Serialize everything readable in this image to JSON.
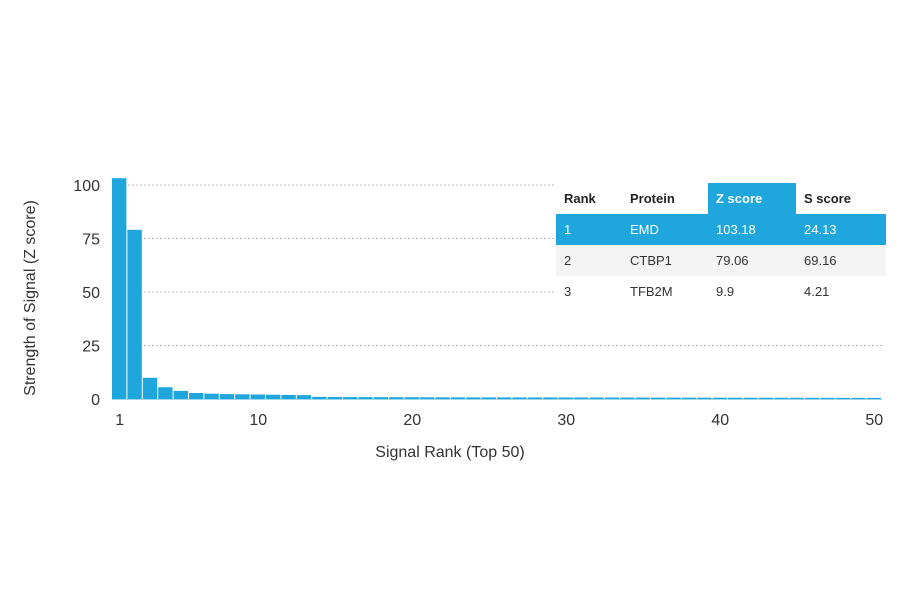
{
  "colors": {
    "bar": "#1fa6dd",
    "highlight": "#1fa6dd",
    "grid": "#bbbbbb",
    "text": "#333333"
  },
  "chart_data": {
    "type": "bar",
    "xlabel": "Signal Rank (Top 50)",
    "ylabel": "Strength of Signal (Z score)",
    "x_ticks": [
      1,
      10,
      20,
      30,
      40,
      50
    ],
    "y_ticks": [
      0,
      25,
      50,
      75,
      100
    ],
    "ylim": [
      0,
      103.18
    ],
    "grid": "horizontal dashed",
    "categories": [
      1,
      2,
      3,
      4,
      5,
      6,
      7,
      8,
      9,
      10,
      11,
      12,
      13,
      14,
      15,
      16,
      17,
      18,
      19,
      20,
      21,
      22,
      23,
      24,
      25,
      26,
      27,
      28,
      29,
      30,
      31,
      32,
      33,
      34,
      35,
      36,
      37,
      38,
      39,
      40,
      41,
      42,
      43,
      44,
      45,
      46,
      47,
      48,
      49,
      50
    ],
    "values": [
      103.18,
      79.06,
      9.9,
      5.5,
      3.8,
      2.8,
      2.5,
      2.3,
      2.2,
      2.1,
      2.0,
      1.9,
      1.8,
      1.0,
      0.95,
      0.9,
      0.88,
      0.86,
      0.84,
      0.82,
      0.8,
      0.79,
      0.78,
      0.77,
      0.76,
      0.75,
      0.74,
      0.73,
      0.72,
      0.71,
      0.7,
      0.69,
      0.68,
      0.67,
      0.66,
      0.65,
      0.64,
      0.63,
      0.62,
      0.61,
      0.6,
      0.59,
      0.58,
      0.57,
      0.56,
      0.55,
      0.54,
      0.53,
      0.52,
      0.51
    ]
  },
  "table": {
    "headers": [
      "Rank",
      "Protein",
      "Z score",
      "S score"
    ],
    "highlight_header": "Z score",
    "rows": [
      {
        "rank": "1",
        "protein": "EMD",
        "z": "103.18",
        "s": "24.13"
      },
      {
        "rank": "2",
        "protein": "CTBP1",
        "z": "79.06",
        "s": "69.16"
      },
      {
        "rank": "3",
        "protein": "TFB2M",
        "z": "9.9",
        "s": "4.21"
      }
    ]
  }
}
